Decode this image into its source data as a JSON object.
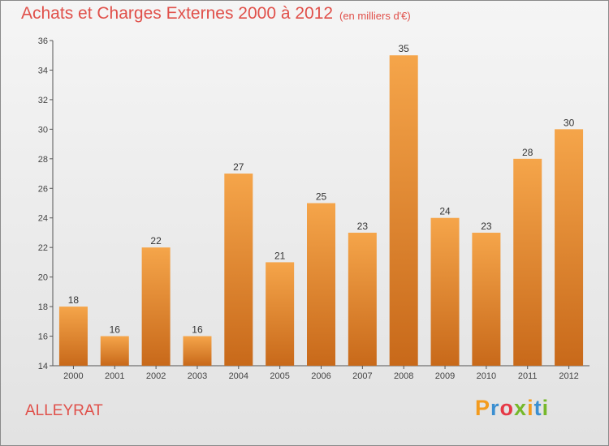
{
  "header": {
    "title": "Achats et Charges Externes 2000 à 2012",
    "subtitle": "(en milliers d'€)"
  },
  "footer": {
    "commune": "ALLEYRAT",
    "logo_letters": [
      "P",
      "r",
      "o",
      "x",
      "i",
      "t",
      "i"
    ],
    "logo_colors": [
      "#f39b1e",
      "#3b8fd1",
      "#e63946",
      "#76b82a",
      "#f39b1e",
      "#3b8fd1",
      "#76b82a"
    ]
  },
  "colors": {
    "bar_top": "#f5a54a",
    "bar_bottom": "#c8691a",
    "text_accent": "#e0504a"
  },
  "chart_data": {
    "type": "bar",
    "title": "Achats et Charges Externes 2000 à 2012",
    "subtitle": "(en milliers d'€)",
    "categories": [
      "2000",
      "2001",
      "2002",
      "2003",
      "2004",
      "2005",
      "2006",
      "2007",
      "2008",
      "2009",
      "2010",
      "2011",
      "2012"
    ],
    "values": [
      18,
      16,
      22,
      16,
      27,
      21,
      25,
      23,
      35,
      24,
      23,
      28,
      30
    ],
    "ylim": [
      14,
      36
    ],
    "yticks": [
      14,
      16,
      18,
      20,
      22,
      24,
      26,
      28,
      30,
      32,
      34,
      36
    ],
    "grid": false,
    "xlabel": "",
    "ylabel": ""
  }
}
